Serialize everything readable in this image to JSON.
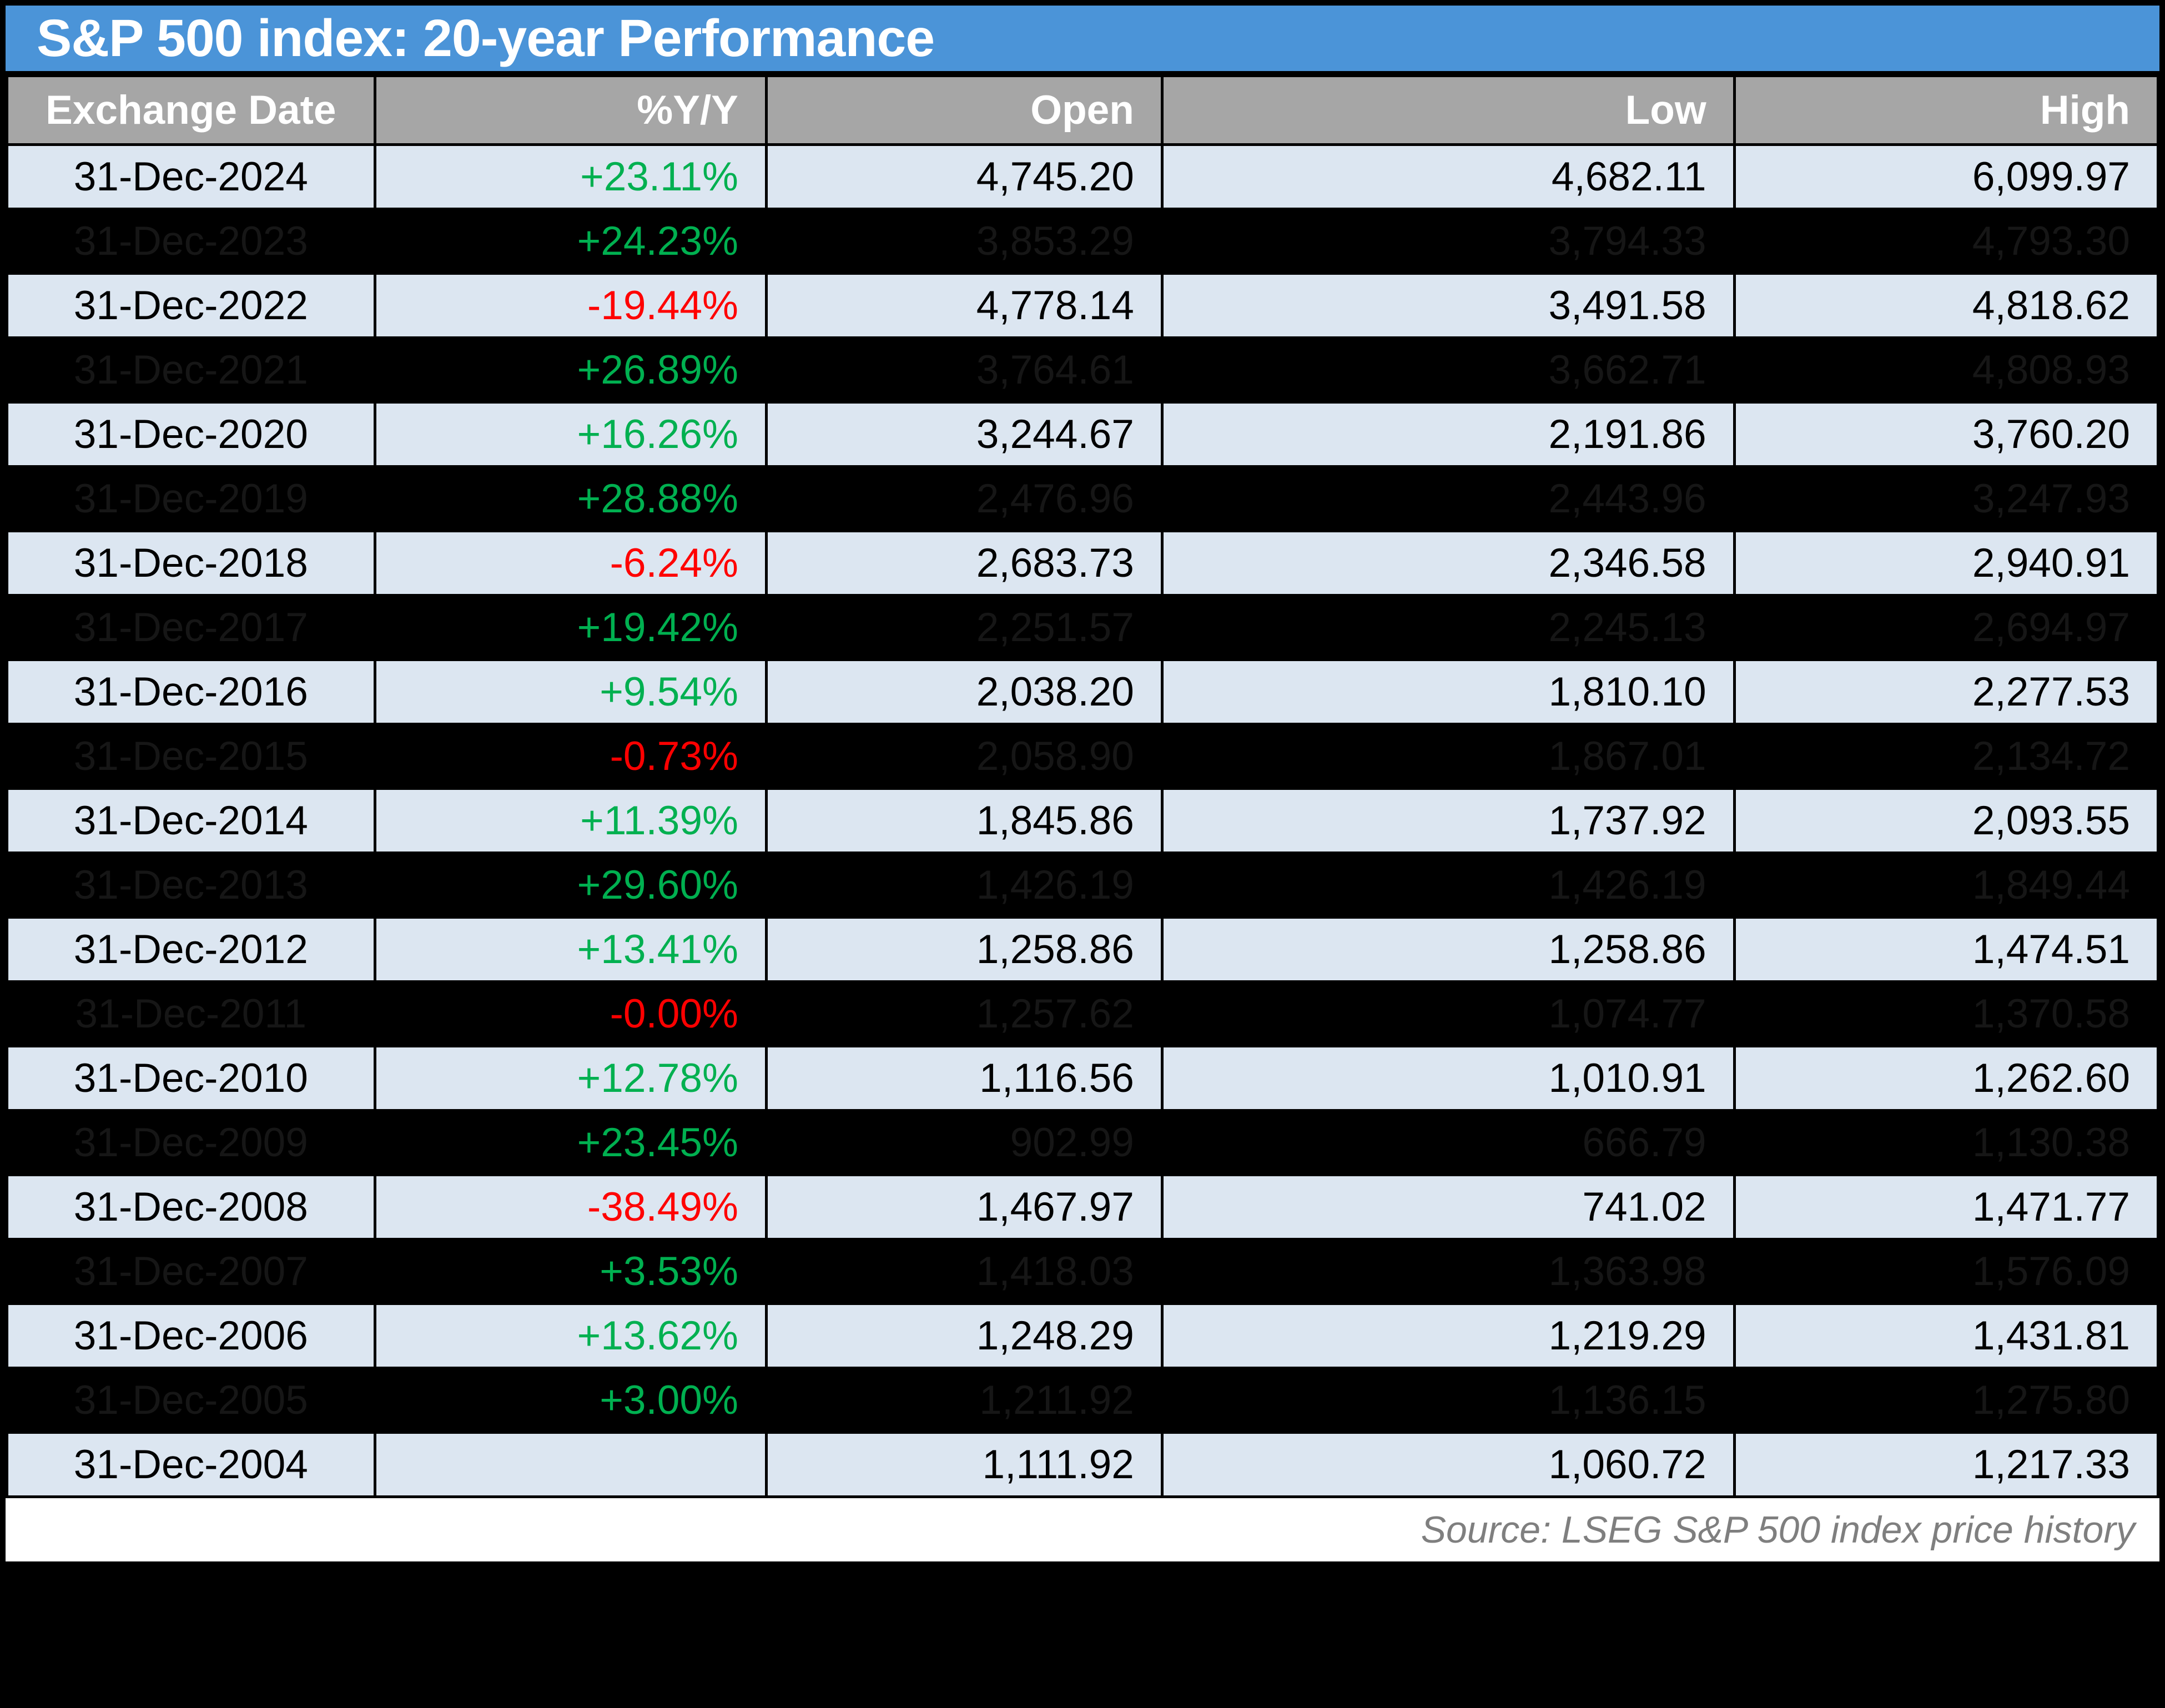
{
  "title": "S&P 500 index: 20-year Performance",
  "source_note": "Source: LSEG S&P 500 index price history",
  "colors": {
    "title_bar_bg": "#4B94D8",
    "header_bg": "#A6A6A6",
    "row_light_bg": "#DCE6F1",
    "row_dark_bg": "#000000",
    "hidden_text": "#161616",
    "positive": "#00B050",
    "negative": "#FF0000",
    "source_text": "#7F7F7F",
    "border": "#000000"
  },
  "chart_data": {
    "type": "table",
    "title": "S&P 500 index: 20-year Performance",
    "columns": [
      "Exchange Date",
      "%Y/Y",
      "Open",
      "Low",
      "High"
    ],
    "rows": [
      {
        "cells": [
          "31-Dec-2024",
          "+23.11%",
          "4,745.20",
          "4,682.11",
          "6,099.97"
        ],
        "dark": false
      },
      {
        "cells": [
          "31-Dec-2023",
          "+24.23%",
          "3,853.29",
          "3,794.33",
          "4,793.30"
        ],
        "dark": true
      },
      {
        "cells": [
          "31-Dec-2022",
          "-19.44%",
          "4,778.14",
          "3,491.58",
          "4,818.62"
        ],
        "dark": false
      },
      {
        "cells": [
          "31-Dec-2021",
          "+26.89%",
          "3,764.61",
          "3,662.71",
          "4,808.93"
        ],
        "dark": true
      },
      {
        "cells": [
          "31-Dec-2020",
          "+16.26%",
          "3,244.67",
          "2,191.86",
          "3,760.20"
        ],
        "dark": false
      },
      {
        "cells": [
          "31-Dec-2019",
          "+28.88%",
          "2,476.96",
          "2,443.96",
          "3,247.93"
        ],
        "dark": true
      },
      {
        "cells": [
          "31-Dec-2018",
          "-6.24%",
          "2,683.73",
          "2,346.58",
          "2,940.91"
        ],
        "dark": false
      },
      {
        "cells": [
          "31-Dec-2017",
          "+19.42%",
          "2,251.57",
          "2,245.13",
          "2,694.97"
        ],
        "dark": true
      },
      {
        "cells": [
          "31-Dec-2016",
          "+9.54%",
          "2,038.20",
          "1,810.10",
          "2,277.53"
        ],
        "dark": false
      },
      {
        "cells": [
          "31-Dec-2015",
          "-0.73%",
          "2,058.90",
          "1,867.01",
          "2,134.72"
        ],
        "dark": true
      },
      {
        "cells": [
          "31-Dec-2014",
          "+11.39%",
          "1,845.86",
          "1,737.92",
          "2,093.55"
        ],
        "dark": false
      },
      {
        "cells": [
          "31-Dec-2013",
          "+29.60%",
          "1,426.19",
          "1,426.19",
          "1,849.44"
        ],
        "dark": true
      },
      {
        "cells": [
          "31-Dec-2012",
          "+13.41%",
          "1,258.86",
          "1,258.86",
          "1,474.51"
        ],
        "dark": false
      },
      {
        "cells": [
          "31-Dec-2011",
          "-0.00%",
          "1,257.62",
          "1,074.77",
          "1,370.58"
        ],
        "dark": true
      },
      {
        "cells": [
          "31-Dec-2010",
          "+12.78%",
          "1,116.56",
          "1,010.91",
          "1,262.60"
        ],
        "dark": false
      },
      {
        "cells": [
          "31-Dec-2009",
          "+23.45%",
          "902.99",
          "666.79",
          "1,130.38"
        ],
        "dark": true
      },
      {
        "cells": [
          "31-Dec-2008",
          "-38.49%",
          "1,467.97",
          "741.02",
          "1,471.77"
        ],
        "dark": false
      },
      {
        "cells": [
          "31-Dec-2007",
          "+3.53%",
          "1,418.03",
          "1,363.98",
          "1,576.09"
        ],
        "dark": true
      },
      {
        "cells": [
          "31-Dec-2006",
          "+13.62%",
          "1,248.29",
          "1,219.29",
          "1,431.81"
        ],
        "dark": false
      },
      {
        "cells": [
          "31-Dec-2005",
          "+3.00%",
          "1,211.92",
          "1,136.15",
          "1,275.80"
        ],
        "dark": true
      },
      {
        "cells": [
          "31-Dec-2004",
          "",
          "1,111.92",
          "1,060.72",
          "1,217.33"
        ],
        "dark": false
      }
    ]
  }
}
